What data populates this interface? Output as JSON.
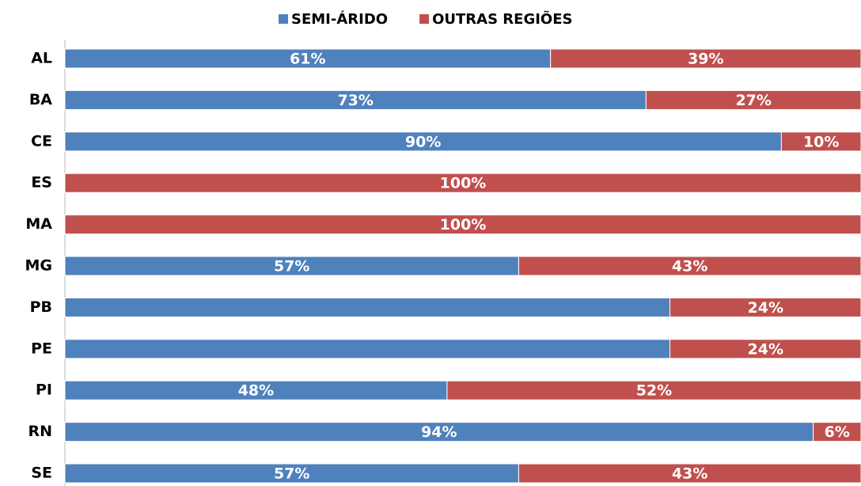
{
  "chart_data": {
    "type": "stacked_bar_horizontal",
    "categories": [
      "AL",
      "BA",
      "CE",
      "ES",
      "MA",
      "MG",
      "PB",
      "PE",
      "PI",
      "RN",
      "SE"
    ],
    "series": [
      {
        "name": "SEMI-ÁRIDO",
        "color": "#4f81bd",
        "values": [
          61,
          73,
          90,
          0,
          0,
          57,
          76,
          76,
          48,
          94,
          57
        ],
        "value_labels": [
          "61%",
          "73%",
          "90%",
          null,
          null,
          "57%",
          null,
          null,
          "48%",
          "94%",
          "57%"
        ]
      },
      {
        "name": "OUTRAS REGIÕES",
        "color": "#c0504d",
        "values": [
          39,
          27,
          10,
          100,
          100,
          43,
          24,
          24,
          52,
          6,
          43
        ],
        "value_labels": [
          "39%",
          "27%",
          "10%",
          "100%",
          "100%",
          "43%",
          "24%",
          "24%",
          "52%",
          "6%",
          "43%"
        ]
      }
    ],
    "xlim": [
      0,
      100
    ],
    "legend": "top"
  }
}
